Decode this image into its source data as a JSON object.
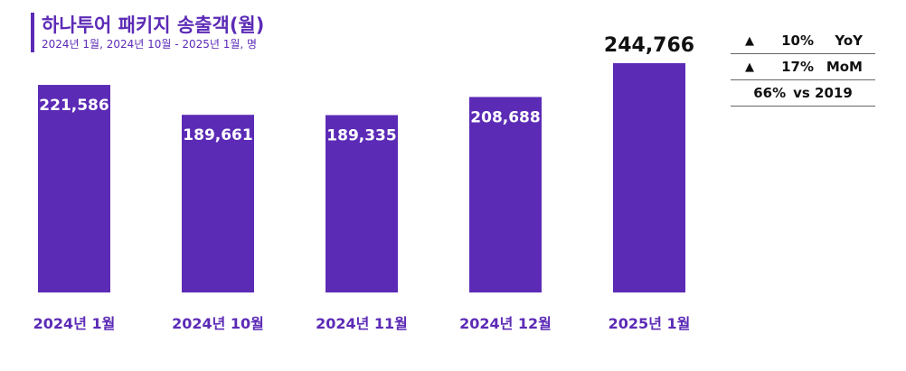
{
  "header": {
    "title": "하나투어 패키지 송출객(월)",
    "subtitle": "2024년 1월, 2024년 10월 - 2025년 1월, 명"
  },
  "colors": {
    "accent": "#5c2bb6",
    "bar_label": "#ffffff",
    "highlight_label": "#111111"
  },
  "chart_data": {
    "type": "bar",
    "title": "하나투어 패키지 송출객(월)",
    "subtitle": "2024년 1월, 2024년 10월 - 2025년 1월, 명",
    "xlabel": "",
    "ylabel": "",
    "categories": [
      "2024년 1월",
      "2024년 10월",
      "2024년 11월",
      "2024년 12월",
      "2025년 1월"
    ],
    "values": [
      221586,
      189661,
      189335,
      208688,
      244766
    ],
    "value_labels": [
      "221,586",
      "189,661",
      "189,335",
      "208,688",
      "244,766"
    ],
    "highlight_index": 4,
    "ylim": [
      0,
      244766
    ],
    "grid": false,
    "legend": "none"
  },
  "kpi": {
    "rows": [
      {
        "arrow": "▲",
        "pct": "10%",
        "label": "YoY"
      },
      {
        "arrow": "▲",
        "pct": "17%",
        "label": "MoM"
      }
    ],
    "vs": {
      "pct": "66%",
      "label": "vs 2019"
    }
  }
}
